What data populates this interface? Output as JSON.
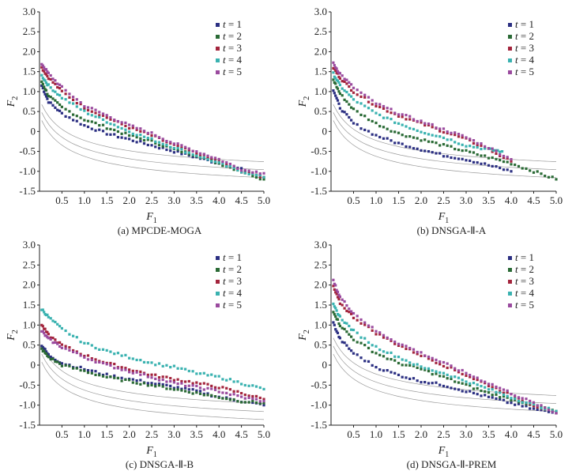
{
  "legend_labels": [
    "t = 1",
    "t = 2",
    "t = 3",
    "t = 4",
    "t = 5"
  ],
  "series_colors": [
    "#2b2f82",
    "#2a6a35",
    "#a3243c",
    "#3ab2b0",
    "#9a4a9e"
  ],
  "chart_data": [
    {
      "type": "scatter",
      "caption": "(a) MPCDE-MOGA",
      "xlabel": "F1",
      "ylabel": "F2",
      "xlim": [
        0,
        5.0
      ],
      "ylim": [
        -1.5,
        3.0
      ],
      "xticks": [
        "0.5",
        "1.0",
        "1.5",
        "2.0",
        "2.5",
        "3.0",
        "3.5",
        "4.0",
        "4.5",
        "5.0"
      ],
      "yticks": [
        "3.0",
        "2.5",
        "2.0",
        "1.5",
        "1.0",
        "0.5",
        "0",
        "-0.5",
        "-1.0",
        "-1.5"
      ],
      "legend": "top-right",
      "series": [
        {
          "name": "t = 1",
          "points": [
            [
              0.05,
              1.15
            ],
            [
              0.2,
              0.75
            ],
            [
              0.5,
              0.45
            ],
            [
              1.0,
              0.15
            ],
            [
              1.5,
              -0.05
            ],
            [
              2.0,
              -0.2
            ],
            [
              2.5,
              -0.35
            ],
            [
              3.0,
              -0.5
            ],
            [
              3.5,
              -0.65
            ],
            [
              4.0,
              -0.8
            ],
            [
              4.5,
              -0.95
            ],
            [
              5.0,
              -1.15
            ]
          ]
        },
        {
          "name": "t = 2",
          "points": [
            [
              0.05,
              1.25
            ],
            [
              0.2,
              0.9
            ],
            [
              0.5,
              0.6
            ],
            [
              1.0,
              0.3
            ],
            [
              1.5,
              0.1
            ],
            [
              2.0,
              -0.1
            ],
            [
              2.5,
              -0.25
            ],
            [
              3.0,
              -0.45
            ],
            [
              3.5,
              -0.6
            ],
            [
              4.0,
              -0.8
            ],
            [
              4.5,
              -1.0
            ],
            [
              5.0,
              -1.2
            ]
          ]
        },
        {
          "name": "t = 3",
          "points": [
            [
              0.05,
              1.6
            ],
            [
              0.2,
              1.35
            ],
            [
              0.5,
              1.0
            ],
            [
              1.0,
              0.6
            ],
            [
              1.5,
              0.35
            ],
            [
              2.0,
              0.1
            ],
            [
              2.5,
              -0.1
            ],
            [
              3.0,
              -0.35
            ],
            [
              3.5,
              -0.55
            ],
            [
              4.0,
              -0.75
            ],
            [
              4.5,
              -1.0
            ],
            [
              5.0,
              -1.15
            ]
          ]
        },
        {
          "name": "t = 4",
          "points": [
            [
              0.05,
              1.4
            ],
            [
              0.2,
              1.15
            ],
            [
              0.5,
              0.85
            ],
            [
              1.0,
              0.5
            ],
            [
              1.5,
              0.25
            ],
            [
              2.0,
              0.0
            ],
            [
              2.5,
              -0.2
            ],
            [
              3.0,
              -0.4
            ],
            [
              3.5,
              -0.6
            ],
            [
              4.0,
              -0.8
            ],
            [
              4.5,
              -1.0
            ],
            [
              5.0,
              -1.15
            ]
          ]
        },
        {
          "name": "t = 5",
          "points": [
            [
              0.05,
              1.7
            ],
            [
              0.2,
              1.45
            ],
            [
              0.5,
              1.1
            ],
            [
              1.0,
              0.65
            ],
            [
              1.5,
              0.4
            ],
            [
              2.0,
              0.15
            ],
            [
              2.5,
              -0.05
            ],
            [
              3.0,
              -0.3
            ],
            [
              3.5,
              -0.5
            ],
            [
              4.0,
              -0.7
            ],
            [
              4.5,
              -0.95
            ],
            [
              5.0,
              -1.05
            ]
          ]
        }
      ]
    },
    {
      "type": "scatter",
      "caption": "(b) DNSGA-Ⅱ-A",
      "xlabel": "F1",
      "ylabel": "F2",
      "xlim": [
        0,
        5.0
      ],
      "ylim": [
        -1.5,
        3.0
      ],
      "xticks": [
        "0.5",
        "1.0",
        "1.5",
        "2.0",
        "2.5",
        "3.0",
        "3.5",
        "4.0",
        "4.5",
        "5.0"
      ],
      "yticks": [
        "3.0",
        "2.5",
        "2.0",
        "1.5",
        "1.0",
        "0.5",
        "0",
        "-0.5",
        "-1.0",
        "-1.5"
      ],
      "legend": "top-right",
      "series": [
        {
          "name": "t = 1",
          "points": [
            [
              0.05,
              1.05
            ],
            [
              0.2,
              0.6
            ],
            [
              0.5,
              0.2
            ],
            [
              1.0,
              -0.1
            ],
            [
              1.5,
              -0.3
            ],
            [
              2.0,
              -0.45
            ],
            [
              2.5,
              -0.6
            ],
            [
              3.0,
              -0.7
            ],
            [
              3.5,
              -0.85
            ],
            [
              4.0,
              -1.0
            ]
          ]
        },
        {
          "name": "t = 2",
          "points": [
            [
              0.05,
              1.3
            ],
            [
              0.2,
              0.95
            ],
            [
              0.5,
              0.55
            ],
            [
              1.0,
              0.2
            ],
            [
              1.5,
              -0.05
            ],
            [
              2.0,
              -0.2
            ],
            [
              2.5,
              -0.35
            ],
            [
              3.0,
              -0.5
            ],
            [
              3.5,
              -0.65
            ],
            [
              4.0,
              -0.8
            ],
            [
              4.5,
              -1.0
            ],
            [
              5.0,
              -1.2
            ]
          ]
        },
        {
          "name": "t = 3",
          "points": [
            [
              0.05,
              1.6
            ],
            [
              0.2,
              1.35
            ],
            [
              0.5,
              1.0
            ],
            [
              1.0,
              0.65
            ],
            [
              1.5,
              0.4
            ],
            [
              2.0,
              0.2
            ],
            [
              2.5,
              0.0
            ],
            [
              3.0,
              -0.2
            ],
            [
              3.5,
              -0.45
            ],
            [
              4.0,
              -0.75
            ]
          ]
        },
        {
          "name": "t = 4",
          "points": [
            [
              0.05,
              1.45
            ],
            [
              0.2,
              1.15
            ],
            [
              0.5,
              0.8
            ],
            [
              1.0,
              0.45
            ],
            [
              1.5,
              0.2
            ],
            [
              2.0,
              0.0
            ],
            [
              2.5,
              -0.15
            ],
            [
              3.0,
              -0.35
            ],
            [
              3.5,
              -0.45
            ],
            [
              3.8,
              -0.5
            ]
          ]
        },
        {
          "name": "t = 5",
          "points": [
            [
              0.05,
              1.7
            ],
            [
              0.2,
              1.45
            ],
            [
              0.5,
              1.1
            ],
            [
              1.0,
              0.7
            ],
            [
              1.5,
              0.45
            ],
            [
              2.0,
              0.25
            ],
            [
              2.5,
              0.05
            ],
            [
              3.0,
              -0.15
            ],
            [
              3.5,
              -0.4
            ],
            [
              4.0,
              -0.7
            ]
          ]
        }
      ]
    },
    {
      "type": "scatter",
      "caption": "(c) DNSGA-Ⅱ-B",
      "xlabel": "F1",
      "ylabel": "F2",
      "xlim": [
        0,
        5.0
      ],
      "ylim": [
        -1.5,
        3.0
      ],
      "xticks": [
        "0.5",
        "1.0",
        "1.5",
        "2.0",
        "2.5",
        "3.0",
        "3.5",
        "4.0",
        "4.5",
        "5.0"
      ],
      "yticks": [
        "3.0",
        "2.5",
        "2.0",
        "1.5",
        "1.0",
        "0.5",
        "0",
        "-0.5",
        "-1.0",
        "-1.5"
      ],
      "legend": "top-right",
      "series": [
        {
          "name": "t = 1",
          "points": [
            [
              0.05,
              0.5
            ],
            [
              0.2,
              0.25
            ],
            [
              0.5,
              0.05
            ],
            [
              1.0,
              -0.1
            ],
            [
              1.5,
              -0.25
            ],
            [
              2.0,
              -0.35
            ],
            [
              2.5,
              -0.45
            ],
            [
              3.0,
              -0.55
            ],
            [
              3.5,
              -0.65
            ],
            [
              4.0,
              -0.8
            ],
            [
              4.5,
              -0.9
            ],
            [
              5.0,
              -1.0
            ]
          ]
        },
        {
          "name": "t = 2",
          "points": [
            [
              0.05,
              0.4
            ],
            [
              0.2,
              0.2
            ],
            [
              0.5,
              0.0
            ],
            [
              1.0,
              -0.15
            ],
            [
              1.5,
              -0.3
            ],
            [
              2.0,
              -0.4
            ],
            [
              2.5,
              -0.5
            ],
            [
              3.0,
              -0.6
            ],
            [
              3.5,
              -0.7
            ],
            [
              4.0,
              -0.8
            ],
            [
              4.5,
              -0.9
            ],
            [
              5.0,
              -0.95
            ]
          ]
        },
        {
          "name": "t = 3",
          "points": [
            [
              0.05,
              1.0
            ],
            [
              0.2,
              0.75
            ],
            [
              0.5,
              0.5
            ],
            [
              1.0,
              0.25
            ],
            [
              1.5,
              0.05
            ],
            [
              2.0,
              -0.1
            ],
            [
              2.5,
              -0.25
            ],
            [
              3.0,
              -0.35
            ],
            [
              3.5,
              -0.45
            ],
            [
              4.0,
              -0.55
            ],
            [
              4.5,
              -0.7
            ],
            [
              5.0,
              -0.85
            ]
          ]
        },
        {
          "name": "t = 4",
          "points": [
            [
              0.05,
              1.4
            ],
            [
              0.2,
              1.2
            ],
            [
              0.5,
              0.9
            ],
            [
              1.0,
              0.55
            ],
            [
              1.5,
              0.35
            ],
            [
              2.0,
              0.2
            ],
            [
              2.5,
              0.05
            ],
            [
              3.0,
              -0.05
            ],
            [
              3.5,
              -0.2
            ],
            [
              4.0,
              -0.3
            ],
            [
              4.5,
              -0.45
            ],
            [
              5.0,
              -0.6
            ]
          ]
        },
        {
          "name": "t = 5",
          "points": [
            [
              0.05,
              0.85
            ],
            [
              0.2,
              0.65
            ],
            [
              0.5,
              0.45
            ],
            [
              1.0,
              0.2
            ],
            [
              1.5,
              0.0
            ],
            [
              2.0,
              -0.15
            ],
            [
              2.5,
              -0.3
            ],
            [
              3.0,
              -0.45
            ],
            [
              3.5,
              -0.55
            ],
            [
              4.0,
              -0.65
            ],
            [
              4.5,
              -0.8
            ],
            [
              5.0,
              -0.9
            ]
          ]
        }
      ]
    },
    {
      "type": "scatter",
      "caption": "(d) DNSGA-Ⅱ-PREM",
      "xlabel": "F1",
      "ylabel": "F2",
      "xlim": [
        0,
        5.0
      ],
      "ylim": [
        -1.5,
        3.0
      ],
      "xticks": [
        "0.5",
        "1.0",
        "1.5",
        "2.0",
        "2.5",
        "3.0",
        "3.5",
        "4.0",
        "4.5",
        "5.0"
      ],
      "yticks": [
        "3.0",
        "2.5",
        "2.0",
        "1.5",
        "1.0",
        "0.5",
        "0",
        "-0.5",
        "-1.0",
        "-1.5"
      ],
      "legend": "top-right",
      "series": [
        {
          "name": "t = 1",
          "points": [
            [
              0.05,
              1.05
            ],
            [
              0.2,
              0.65
            ],
            [
              0.5,
              0.3
            ],
            [
              1.0,
              -0.05
            ],
            [
              1.5,
              -0.25
            ],
            [
              2.0,
              -0.4
            ],
            [
              2.5,
              -0.5
            ],
            [
              3.0,
              -0.65
            ],
            [
              3.5,
              -0.8
            ],
            [
              4.0,
              -0.95
            ],
            [
              4.5,
              -1.1
            ],
            [
              5.0,
              -1.2
            ]
          ]
        },
        {
          "name": "t = 2",
          "points": [
            [
              0.05,
              1.35
            ],
            [
              0.2,
              1.0
            ],
            [
              0.5,
              0.65
            ],
            [
              1.0,
              0.3
            ],
            [
              1.5,
              0.05
            ],
            [
              2.0,
              -0.1
            ],
            [
              2.5,
              -0.3
            ],
            [
              3.0,
              -0.5
            ],
            [
              3.5,
              -0.7
            ],
            [
              4.0,
              -0.85
            ],
            [
              4.5,
              -1.0
            ],
            [
              5.0,
              -1.15
            ]
          ]
        },
        {
          "name": "t = 3",
          "points": [
            [
              0.05,
              1.95
            ],
            [
              0.2,
              1.55
            ],
            [
              0.5,
              1.2
            ],
            [
              1.0,
              0.8
            ],
            [
              1.5,
              0.5
            ],
            [
              2.0,
              0.25
            ],
            [
              2.5,
              0.0
            ],
            [
              3.0,
              -0.25
            ],
            [
              3.5,
              -0.5
            ],
            [
              4.0,
              -0.75
            ],
            [
              4.5,
              -1.0
            ],
            [
              5.0,
              -1.2
            ]
          ]
        },
        {
          "name": "t = 4",
          "points": [
            [
              0.05,
              1.5
            ],
            [
              0.2,
              1.2
            ],
            [
              0.5,
              0.85
            ],
            [
              1.0,
              0.45
            ],
            [
              1.5,
              0.2
            ],
            [
              2.0,
              -0.05
            ],
            [
              2.5,
              -0.2
            ],
            [
              3.0,
              -0.4
            ],
            [
              3.5,
              -0.6
            ],
            [
              4.0,
              -0.8
            ],
            [
              4.5,
              -1.0
            ],
            [
              5.0,
              -1.15
            ]
          ]
        },
        {
          "name": "t = 5",
          "points": [
            [
              0.05,
              2.1
            ],
            [
              0.2,
              1.7
            ],
            [
              0.5,
              1.3
            ],
            [
              1.0,
              0.85
            ],
            [
              1.5,
              0.55
            ],
            [
              2.0,
              0.3
            ],
            [
              2.5,
              0.05
            ],
            [
              3.0,
              -0.2
            ],
            [
              3.5,
              -0.45
            ],
            [
              4.0,
              -0.7
            ],
            [
              4.5,
              -0.95
            ],
            [
              5.0,
              -1.2
            ]
          ]
        }
      ]
    }
  ]
}
